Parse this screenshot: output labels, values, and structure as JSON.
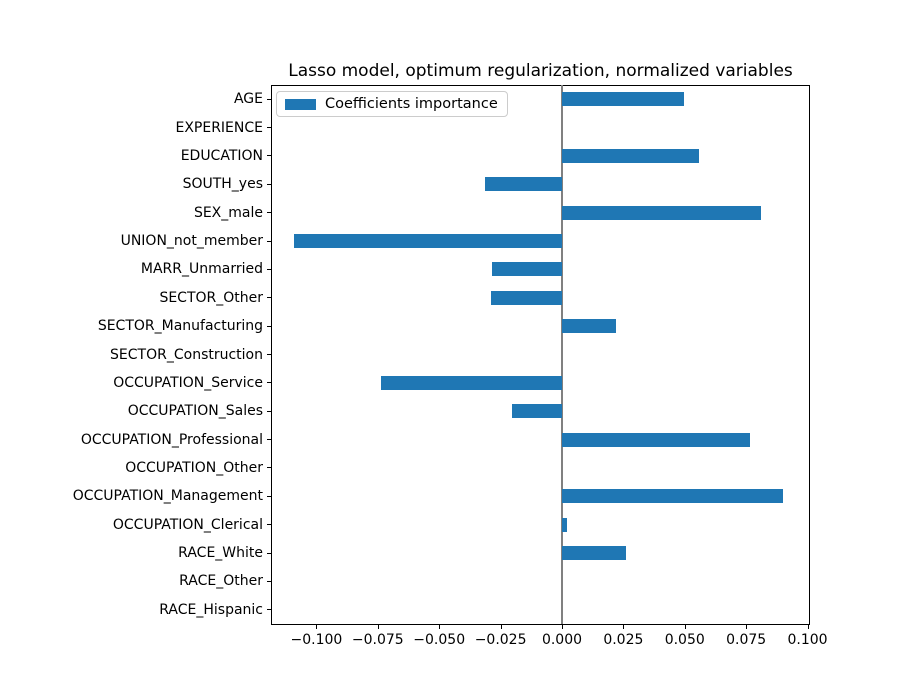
{
  "title": "Lasso model, optimum regularization, normalized variables",
  "legend": {
    "label": "Coefficients importance",
    "swatch_color": "#1f77b4"
  },
  "colors": {
    "bar": "#1f77b4",
    "zero_line": "#808080",
    "axis": "#000000",
    "legend_border": "#cccccc",
    "background": "#ffffff"
  },
  "chart_data": {
    "type": "bar",
    "orientation": "horizontal",
    "title": "Lasso model, optimum regularization, normalized variables",
    "legend_entries": [
      "Coefficients importance"
    ],
    "legend_position": "upper left",
    "grid": false,
    "zero_line": true,
    "xlabel": "",
    "ylabel": "",
    "xlim": [
      -0.1185,
      0.101
    ],
    "x_ticks": [
      -0.1,
      -0.075,
      -0.05,
      -0.025,
      0.0,
      0.025,
      0.05,
      0.075,
      0.1
    ],
    "x_tick_labels": [
      "−0.100",
      "−0.075",
      "−0.050",
      "−0.025",
      "0.000",
      "0.025",
      "0.050",
      "0.075",
      "0.100"
    ],
    "categories": [
      "AGE",
      "EXPERIENCE",
      "EDUCATION",
      "SOUTH_yes",
      "SEX_male",
      "UNION_not_member",
      "MARR_Unmarried",
      "SECTOR_Other",
      "SECTOR_Manufacturing",
      "SECTOR_Construction",
      "OCCUPATION_Service",
      "OCCUPATION_Sales",
      "OCCUPATION_Professional",
      "OCCUPATION_Other",
      "OCCUPATION_Management",
      "OCCUPATION_Clerical",
      "RACE_White",
      "RACE_Other",
      "RACE_Hispanic"
    ],
    "values": [
      0.0495,
      0.0,
      0.056,
      -0.0312,
      0.081,
      -0.109,
      -0.0283,
      -0.029,
      0.0222,
      0.0,
      -0.0738,
      -0.0204,
      0.0766,
      0.0,
      0.0902,
      0.002,
      0.0259,
      0.0,
      0.0
    ]
  }
}
